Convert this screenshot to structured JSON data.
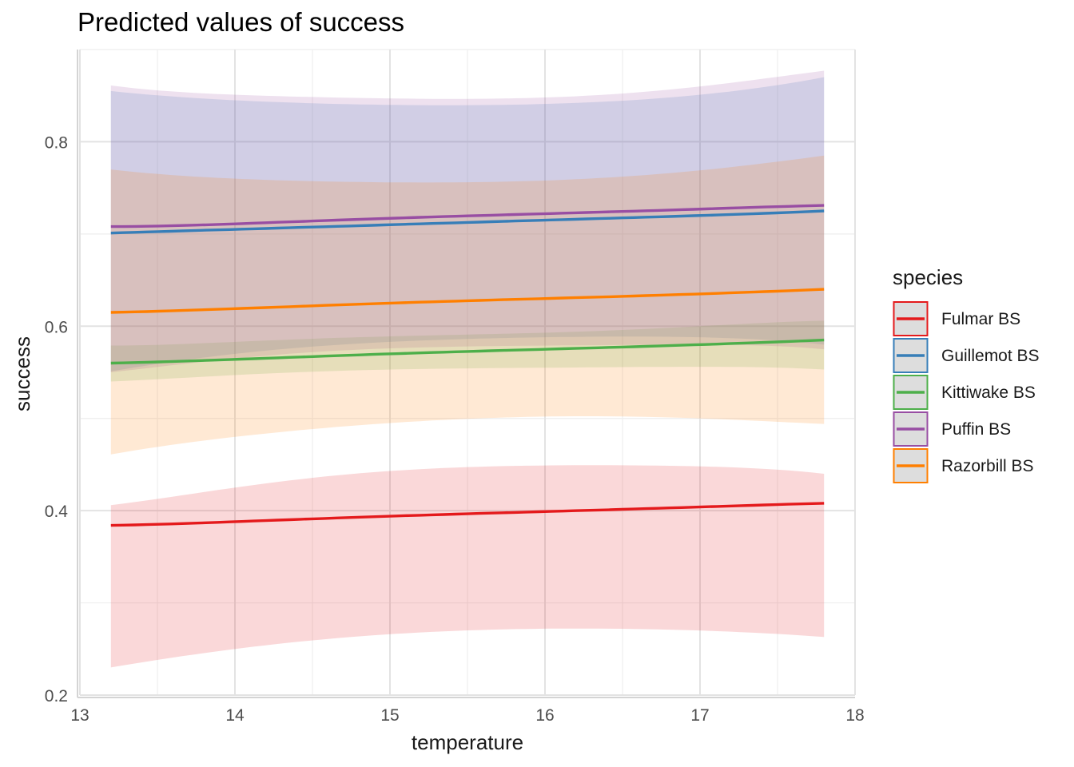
{
  "chart_data": {
    "type": "line",
    "title": "Predicted values of success",
    "xlabel": "temperature",
    "ylabel": "success",
    "xlim": [
      13,
      18
    ],
    "ylim": [
      0.2,
      0.9
    ],
    "x_ticks": [
      13,
      14,
      15,
      16,
      17,
      18
    ],
    "y_ticks": [
      0.2,
      0.4,
      0.6,
      0.8
    ],
    "y_tick_labels": [
      "0.2",
      "0.4",
      "0.6",
      "0.8"
    ],
    "grid": true,
    "legend": {
      "title": "species",
      "position": "right"
    },
    "x": [
      13.2,
      14.0,
      15.0,
      16.0,
      17.0,
      17.8
    ],
    "series": [
      {
        "name": "Fulmar BS",
        "color": "#e41a1c",
        "values": [
          0.384,
          0.388,
          0.394,
          0.399,
          0.404,
          0.408
        ],
        "lower": [
          0.23,
          0.25,
          0.266,
          0.272,
          0.27,
          0.263
        ],
        "upper": [
          0.406,
          0.425,
          0.443,
          0.449,
          0.448,
          0.44
        ]
      },
      {
        "name": "Guillemot BS",
        "color": "#377eb8",
        "values": [
          0.701,
          0.705,
          0.71,
          0.715,
          0.72,
          0.725
        ],
        "lower": [
          0.551,
          0.57,
          0.583,
          0.588,
          0.588,
          0.58
        ],
        "upper": [
          0.855,
          0.845,
          0.84,
          0.841,
          0.851,
          0.87
        ]
      },
      {
        "name": "Kittiwake BS",
        "color": "#4daf4a",
        "values": [
          0.56,
          0.564,
          0.57,
          0.575,
          0.58,
          0.585
        ],
        "lower": [
          0.54,
          0.547,
          0.553,
          0.555,
          0.556,
          0.553
        ],
        "upper": [
          0.579,
          0.583,
          0.589,
          0.593,
          0.6,
          0.606
        ]
      },
      {
        "name": "Puffin BS",
        "color": "#984ea3",
        "values": [
          0.708,
          0.711,
          0.717,
          0.722,
          0.727,
          0.731
        ],
        "lower": [
          0.55,
          0.565,
          0.576,
          0.579,
          0.58,
          0.575
        ],
        "upper": [
          0.861,
          0.851,
          0.847,
          0.848,
          0.86,
          0.877
        ]
      },
      {
        "name": "Razorbill BS",
        "color": "#ff7f00",
        "values": [
          0.615,
          0.619,
          0.625,
          0.63,
          0.635,
          0.64
        ],
        "lower": [
          0.461,
          0.48,
          0.495,
          0.502,
          0.5,
          0.494
        ],
        "upper": [
          0.77,
          0.76,
          0.756,
          0.758,
          0.769,
          0.785
        ]
      }
    ]
  }
}
